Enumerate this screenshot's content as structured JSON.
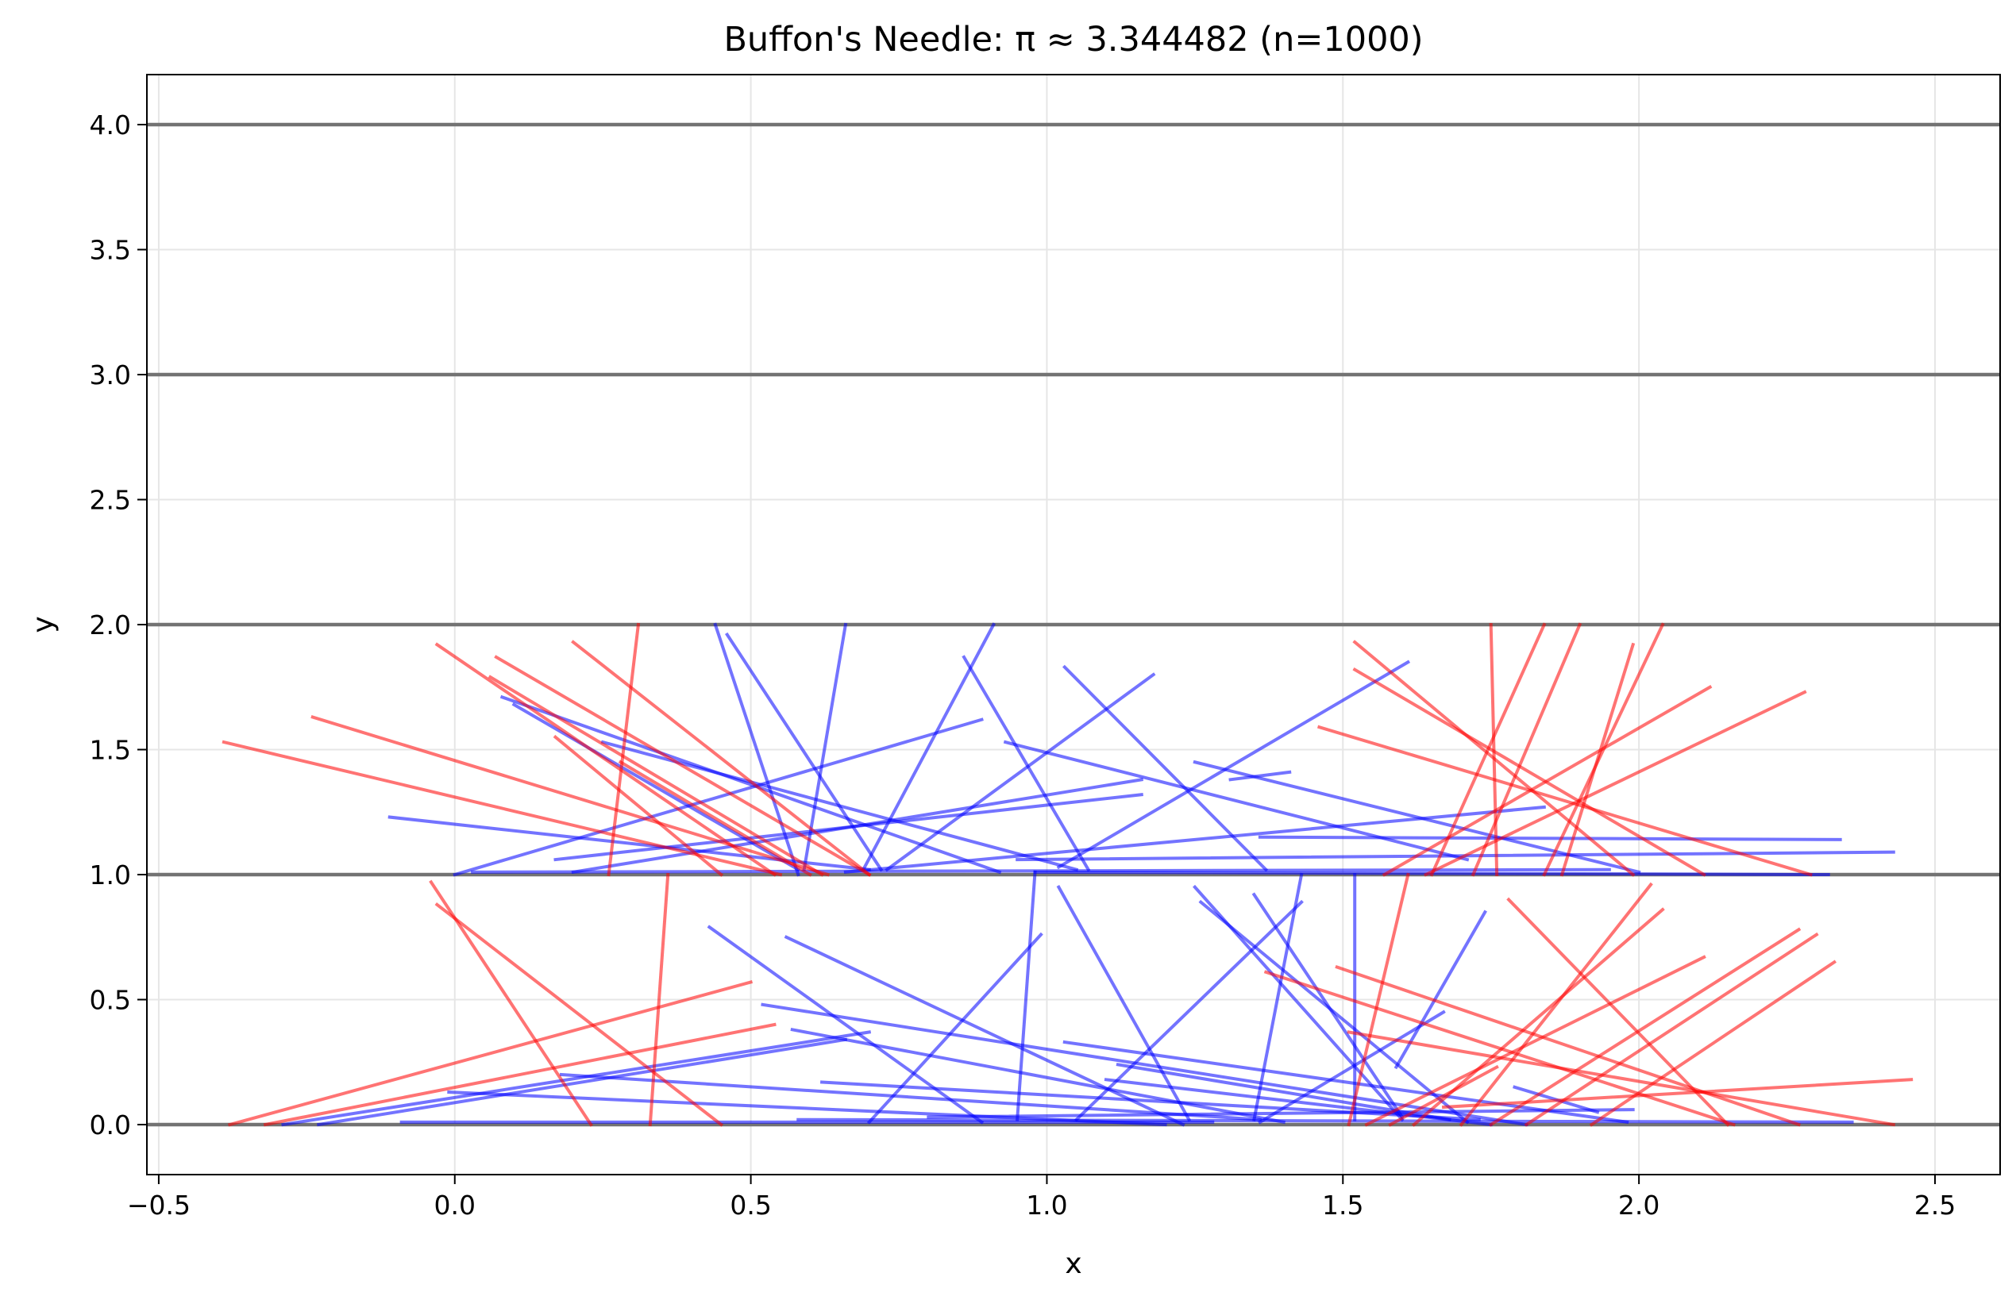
{
  "chart_data": {
    "type": "line",
    "title": "Buffon's Needle: π ≈ 3.344482 (n=1000)",
    "xlabel": "x",
    "ylabel": "y",
    "xlim": [
      -0.52,
      2.61
    ],
    "ylim": [
      -0.2,
      4.2
    ],
    "x_ticks": [
      -0.5,
      0.0,
      0.5,
      1.0,
      1.5,
      2.0,
      2.5
    ],
    "x_tick_labels": [
      "−0.5",
      "0.0",
      "0.5",
      "1.0",
      "1.5",
      "2.0",
      "2.5"
    ],
    "y_ticks": [
      0.0,
      0.5,
      1.0,
      1.5,
      2.0,
      2.5,
      3.0,
      3.5,
      4.0
    ],
    "y_tick_labels": [
      "0.0",
      "0.5",
      "1.0",
      "1.5",
      "2.0",
      "2.5",
      "3.0",
      "3.5",
      "4.0"
    ],
    "grid": true,
    "floor_lines_y": [
      0,
      1,
      2,
      3,
      4
    ],
    "floor_line_color": "#737373",
    "crossing_color": "#ff0000",
    "non_crossing_color": "#0000ff",
    "needle_opacity": 0.55,
    "crossing_needles": [
      [
        -0.39,
        1.53,
        0.55,
        1.0
      ],
      [
        -0.24,
        1.63,
        0.63,
        1.0
      ],
      [
        -0.03,
        1.92,
        0.54,
        1.0
      ],
      [
        0.07,
        1.87,
        0.7,
        1.0
      ],
      [
        0.06,
        1.79,
        0.62,
        1.0
      ],
      [
        0.2,
        1.93,
        0.7,
        1.0
      ],
      [
        0.31,
        2.0,
        0.26,
        1.0
      ],
      [
        0.17,
        1.55,
        0.45,
        1.0
      ],
      [
        0.28,
        1.45,
        0.6,
        1.0
      ],
      [
        -0.04,
        0.97,
        0.23,
        0.0
      ],
      [
        -0.03,
        0.88,
        0.45,
        0.0
      ],
      [
        0.36,
        1.0,
        0.33,
        0.0
      ],
      [
        0.5,
        0.57,
        -0.38,
        0.0
      ],
      [
        0.54,
        0.4,
        -0.32,
        0.0
      ],
      [
        1.52,
        1.93,
        1.99,
        1.0
      ],
      [
        1.52,
        1.82,
        2.11,
        1.0
      ],
      [
        1.46,
        1.59,
        2.29,
        1.0
      ],
      [
        1.75,
        2.0,
        1.76,
        1.0
      ],
      [
        1.84,
        2.0,
        1.65,
        1.0
      ],
      [
        1.9,
        2.0,
        1.72,
        1.0
      ],
      [
        1.99,
        1.92,
        1.87,
        1.0
      ],
      [
        2.04,
        2.0,
        1.84,
        1.0
      ],
      [
        2.12,
        1.75,
        1.57,
        1.0
      ],
      [
        2.28,
        1.73,
        1.64,
        1.0
      ],
      [
        1.61,
        1.0,
        1.51,
        0.0
      ],
      [
        1.78,
        0.9,
        2.15,
        0.0
      ],
      [
        2.02,
        0.96,
        1.7,
        0.0
      ],
      [
        2.04,
        0.86,
        1.62,
        0.0
      ],
      [
        2.11,
        0.67,
        1.54,
        0.0
      ],
      [
        2.27,
        0.78,
        1.75,
        0.0
      ],
      [
        2.3,
        0.76,
        1.81,
        0.0
      ],
      [
        2.33,
        0.65,
        1.92,
        0.0
      ],
      [
        1.37,
        0.61,
        2.16,
        0.0
      ],
      [
        1.49,
        0.63,
        2.27,
        0.0
      ],
      [
        1.51,
        0.37,
        2.43,
        0.0
      ],
      [
        1.67,
        0.07,
        2.46,
        0.18
      ],
      [
        1.76,
        0.23,
        1.58,
        0.0
      ]
    ],
    "non_crossing_needles": [
      [
        0.08,
        1.71,
        0.92,
        1.01
      ],
      [
        0.1,
        1.68,
        0.58,
        1.02
      ],
      [
        0.25,
        1.53,
        1.05,
        1.02
      ],
      [
        0.44,
        2.0,
        0.58,
        1.0
      ],
      [
        0.46,
        1.96,
        0.72,
        1.02
      ],
      [
        0.66,
        2.0,
        0.59,
        1.02
      ],
      [
        0.91,
        2.0,
        0.69,
        1.02
      ],
      [
        0.86,
        1.87,
        1.07,
        1.02
      ],
      [
        1.03,
        1.83,
        1.37,
        1.02
      ],
      [
        1.18,
        1.8,
        0.73,
        1.02
      ],
      [
        1.61,
        1.85,
        1.02,
        1.03
      ],
      [
        0.0,
        1.0,
        0.89,
        1.62
      ],
      [
        -0.11,
        1.23,
        0.7,
        1.02
      ],
      [
        0.17,
        1.06,
        1.16,
        1.32
      ],
      [
        0.2,
        1.01,
        1.16,
        1.38
      ],
      [
        0.93,
        1.53,
        1.71,
        1.06
      ],
      [
        1.25,
        1.45,
        2.0,
        1.01
      ],
      [
        1.31,
        1.38,
        1.41,
        1.41
      ],
      [
        1.84,
        1.27,
        0.66,
        1.01
      ],
      [
        1.36,
        1.15,
        2.34,
        1.14
      ],
      [
        0.95,
        1.06,
        2.43,
        1.09
      ],
      [
        0.03,
        1.01,
        1.95,
        1.02
      ],
      [
        0.98,
        1.01,
        2.32,
        1.0
      ],
      [
        0.43,
        0.79,
        0.89,
        0.01
      ],
      [
        0.56,
        0.75,
        1.23,
        0.0
      ],
      [
        0.7,
        0.01,
        0.99,
        0.76
      ],
      [
        0.98,
        1.01,
        0.95,
        0.02
      ],
      [
        1.02,
        0.95,
        1.24,
        0.02
      ],
      [
        1.05,
        0.02,
        1.43,
        0.89
      ],
      [
        1.25,
        0.95,
        1.6,
        0.02
      ],
      [
        1.26,
        0.89,
        1.71,
        0.01
      ],
      [
        1.35,
        0.92,
        1.6,
        0.03
      ],
      [
        1.43,
        1.0,
        1.35,
        0.02
      ],
      [
        1.52,
        1.0,
        1.52,
        0.02
      ],
      [
        1.67,
        0.45,
        1.36,
        0.01
      ],
      [
        1.74,
        0.85,
        1.59,
        0.23
      ],
      [
        -0.29,
        0.0,
        0.7,
        0.37
      ],
      [
        -0.23,
        0.0,
        0.66,
        0.34
      ],
      [
        0.52,
        0.48,
        1.81,
        0.0
      ],
      [
        0.57,
        0.38,
        1.4,
        0.01
      ],
      [
        0.18,
        0.2,
        1.36,
        0.02
      ],
      [
        -0.01,
        0.13,
        1.2,
        0.0
      ],
      [
        0.62,
        0.17,
        1.73,
        0.02
      ],
      [
        1.03,
        0.33,
        1.98,
        0.01
      ],
      [
        1.12,
        0.24,
        1.68,
        0.02
      ],
      [
        1.1,
        0.18,
        1.75,
        0.0
      ],
      [
        -0.09,
        0.01,
        1.28,
        0.01
      ],
      [
        0.58,
        0.02,
        2.36,
        0.01
      ],
      [
        0.8,
        0.03,
        1.99,
        0.06
      ],
      [
        1.79,
        0.15,
        1.93,
        0.05
      ]
    ]
  }
}
